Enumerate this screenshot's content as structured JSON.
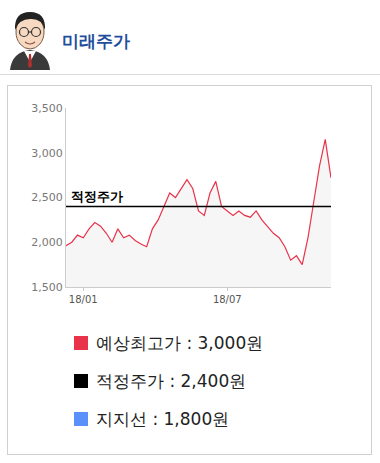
{
  "header": {
    "title": "미래주가"
  },
  "chart_data": {
    "type": "line",
    "categories": [
      null,
      null,
      null,
      "18/01",
      null,
      null,
      null,
      null,
      null,
      null,
      null,
      null,
      null,
      null,
      null,
      null,
      null,
      null,
      null,
      null,
      null,
      null,
      null,
      null,
      null,
      null,
      null,
      null,
      "18/07",
      null,
      null,
      null,
      null,
      null,
      null,
      null,
      null,
      null,
      null,
      null,
      null,
      null,
      null,
      null,
      null,
      null,
      null
    ],
    "series": [
      {
        "color": "#e8334a",
        "values": [
          1960,
          2000,
          2080,
          2050,
          2150,
          2220,
          2180,
          2100,
          2000,
          2150,
          2050,
          2080,
          2020,
          1980,
          1950,
          2150,
          2250,
          2400,
          2550,
          2500,
          2600,
          2700,
          2600,
          2350,
          2300,
          2550,
          2680,
          2400,
          2350,
          2300,
          2350,
          2300,
          2280,
          2350,
          2250,
          2180,
          2100,
          2050,
          1950,
          1800,
          1850,
          1750,
          2050,
          2450,
          2850,
          3150,
          2720
        ]
      }
    ],
    "ylim": [
      1500,
      3500
    ],
    "yticks": [
      {
        "value": 1500,
        "label": "1,500"
      },
      {
        "value": 2000,
        "label": "2,000"
      },
      {
        "value": 2500,
        "label": "2,500"
      },
      {
        "value": 3000,
        "label": "3,000"
      },
      {
        "value": 3500,
        "label": "3,500"
      }
    ],
    "grid": false,
    "reference_lines": [
      {
        "label": "적정주가",
        "value": 2400,
        "color": "#000000"
      }
    ],
    "legend_items": [
      {
        "label": "예상최고가 : 3,000원",
        "color": "#e8334a"
      },
      {
        "label": "적정주가 : 2,400원",
        "color": "#000000"
      },
      {
        "label": "지지선 : 1,800원",
        "color": "#5b8ff9"
      }
    ]
  }
}
